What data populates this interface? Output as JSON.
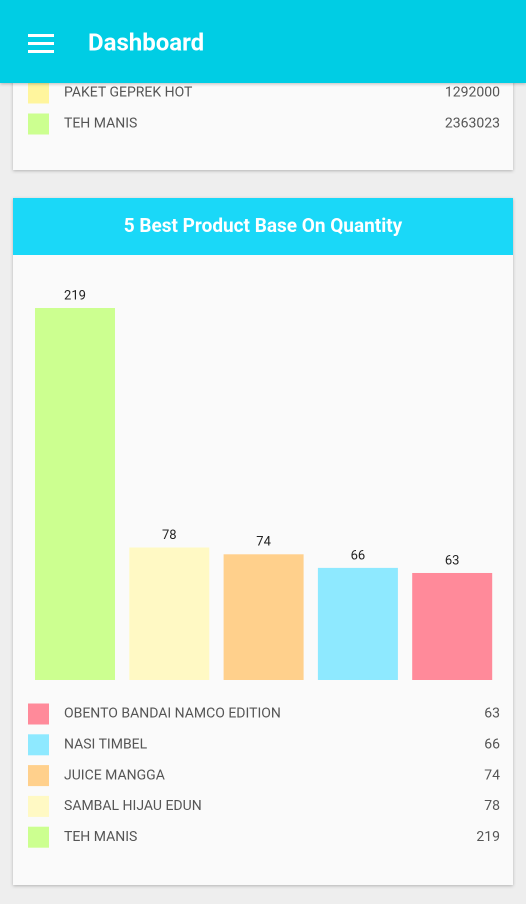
{
  "app_bar": {
    "title": "Dashboard"
  },
  "sales_card": {
    "items": [
      {
        "label": "PAKET GEPREK HOT",
        "value": "1292000",
        "color": "#fff59d"
      },
      {
        "label": "TEH MANIS",
        "value": "2363023",
        "color": "#ccff90"
      }
    ]
  },
  "chart_data": {
    "type": "bar",
    "title": "5 Best Product Base On Quantity",
    "categories": [
      "TEH MANIS",
      "SAMBAL HIJAU EDUN",
      "JUICE MANGGA",
      "NASI TIMBEL",
      "OBENTO BANDAI NAMCO EDITION"
    ],
    "values": [
      219,
      78,
      74,
      66,
      63
    ],
    "colors": [
      "#ccff90",
      "#fff9c4",
      "#ffd08c",
      "#8ee9ff",
      "#ff8a9a"
    ]
  }
}
